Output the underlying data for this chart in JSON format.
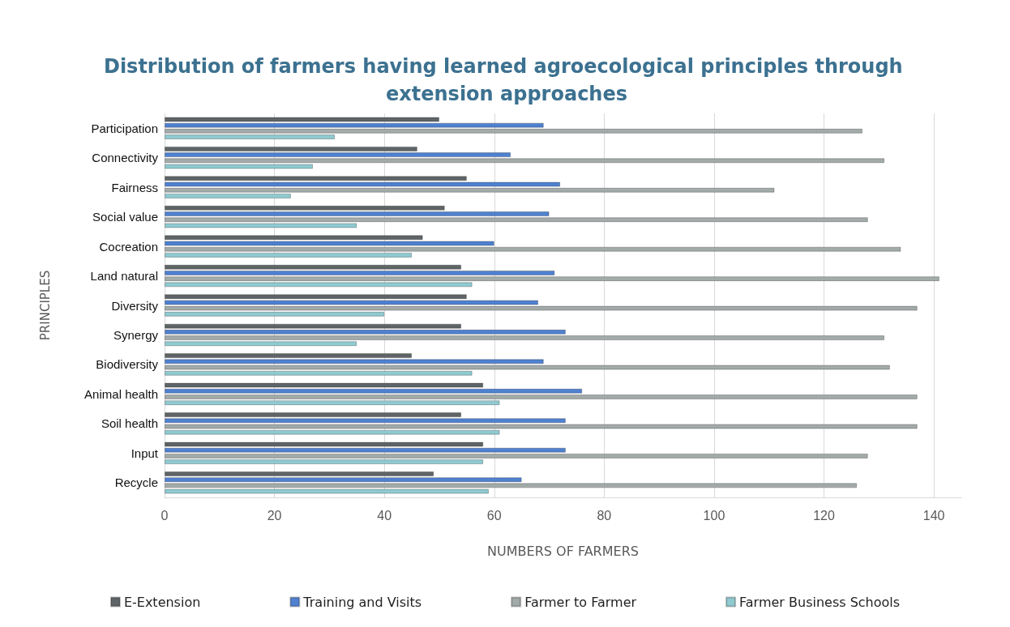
{
  "chart_data": {
    "type": "bar",
    "orientation": "horizontal",
    "title": "Distribution of farmers having learned agroecological principles through extension approaches",
    "xlabel": "NUMBERS OF FARMERS",
    "ylabel": "PRINCIPLES",
    "categories": [
      "Participation",
      "Connectivity",
      "Fairness",
      "Social value",
      "Cocreation",
      "Land natural",
      "Diversity",
      "Synergy",
      "Biodiversity",
      "Animal health",
      "Soil health",
      "Input",
      "Recycle"
    ],
    "series": [
      {
        "name": "E-Extension",
        "color": "#5f6566",
        "values": [
          50,
          46,
          55,
          51,
          47,
          54,
          55,
          54,
          45,
          58,
          54,
          58,
          49
        ]
      },
      {
        "name": "Training and Visits",
        "color": "#4f81d0",
        "values": [
          69,
          63,
          72,
          70,
          60,
          71,
          68,
          73,
          69,
          76,
          73,
          73,
          65
        ]
      },
      {
        "name": "Farmer to Farmer",
        "color": "#a3aaaa",
        "values": [
          127,
          131,
          111,
          128,
          134,
          141,
          137,
          131,
          132,
          137,
          137,
          128,
          126
        ]
      },
      {
        "name": "Farmer Business Schools",
        "color": "#8fcad0",
        "values": [
          31,
          27,
          23,
          35,
          45,
          56,
          40,
          35,
          56,
          61,
          61,
          58,
          59
        ]
      }
    ],
    "xlim": [
      0,
      145
    ],
    "xticks": [
      0,
      20,
      40,
      60,
      80,
      100,
      120,
      140
    ],
    "grid": "x",
    "legend": "bottom"
  }
}
